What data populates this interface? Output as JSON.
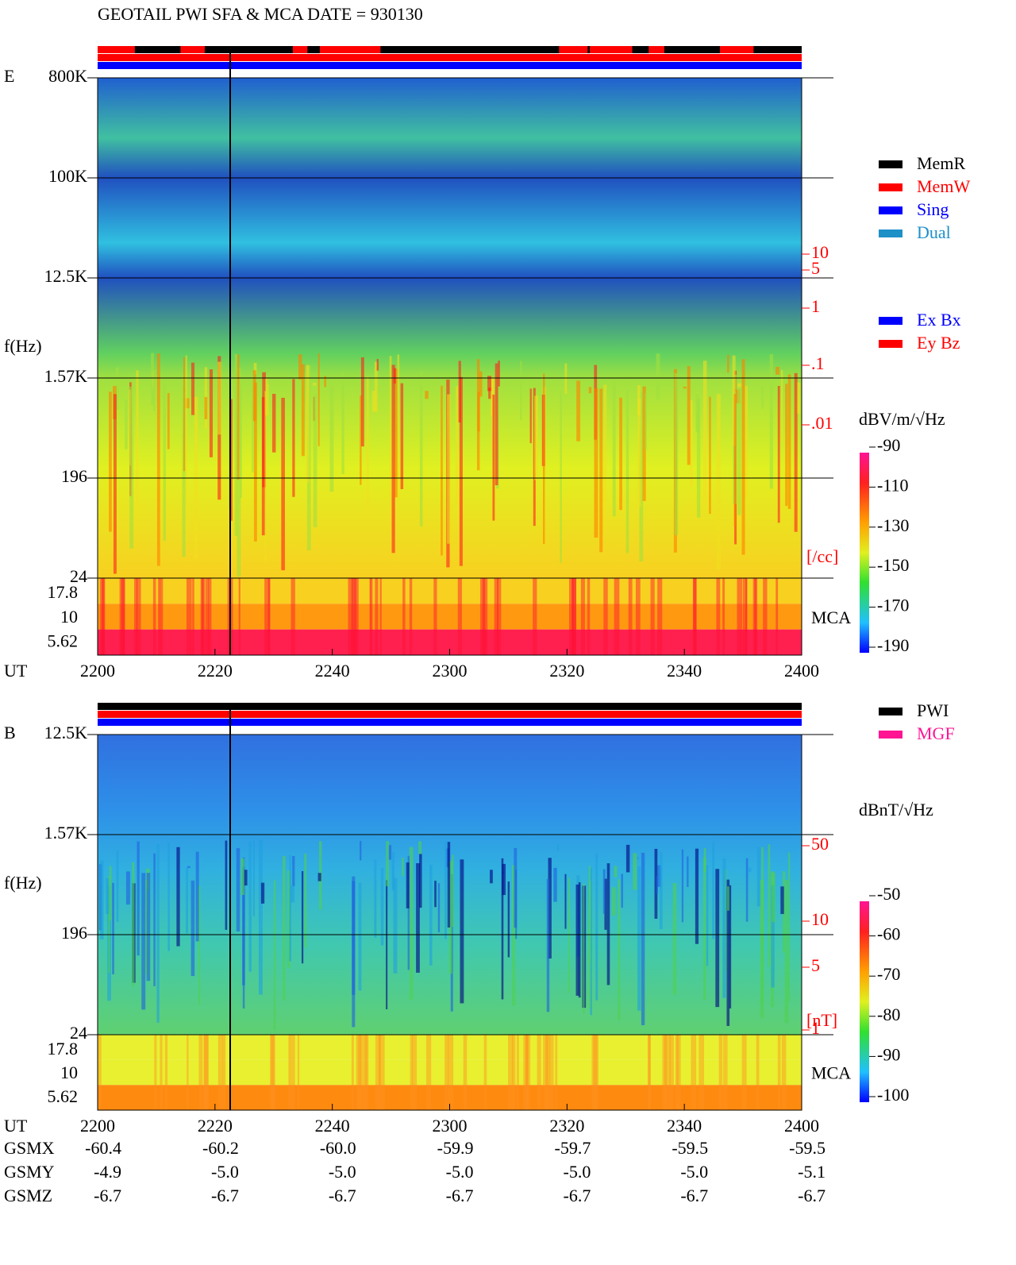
{
  "header": {
    "title": "GEOTAIL  PWI SFA & MCA   DATE = 930130"
  },
  "panels": [
    {
      "label": "E",
      "y_label": "f(Hz)",
      "freq_ticks": [
        "800K",
        "100K",
        "12.5K",
        "1.57K",
        "196",
        "24"
      ],
      "mca_ticks": [
        "17.8",
        "10",
        "5.62"
      ],
      "mca_label": "MCA",
      "side_ticks": [
        "10",
        "5",
        "1",
        ".1",
        ".01"
      ],
      "side_unit": "[/cc]",
      "colorbar_unit": "dBV/m/√Hz",
      "colorbar_ticks": [
        "-90",
        "-110",
        "-130",
        "-150",
        "-170",
        "-190"
      ],
      "legend": [
        {
          "name": "MemR",
          "color": "#000000"
        },
        {
          "name": "MemW",
          "color": "#ff0000"
        },
        {
          "name": "Sing",
          "color": "#0000ff"
        },
        {
          "name": "Dual",
          "color": "#1e90c8"
        }
      ],
      "legend2": [
        {
          "name": "Ex Bx",
          "color": "#0000ff"
        },
        {
          "name": "Ey Bz",
          "color": "#ff0000"
        }
      ]
    },
    {
      "label": "B",
      "y_label": "f(Hz)",
      "freq_ticks": [
        "12.5K",
        "1.57K",
        "196",
        "24"
      ],
      "mca_ticks": [
        "17.8",
        "10",
        "5.62"
      ],
      "mca_label": "MCA",
      "side_ticks": [
        "50",
        "10",
        "5",
        "1"
      ],
      "side_unit": "[nT]",
      "colorbar_unit": "dBnT/√Hz",
      "colorbar_ticks": [
        "-50",
        "-60",
        "-70",
        "-80",
        "-90",
        "-100"
      ],
      "legend": [
        {
          "name": "PWI",
          "color": "#000000"
        },
        {
          "name": "MGF",
          "color": "#ff1493"
        }
      ]
    }
  ],
  "time_axis": {
    "label": "UT",
    "ticks": [
      "2200",
      "2220",
      "2240",
      "2300",
      "2320",
      "2340",
      "2400"
    ]
  },
  "orbit": [
    {
      "label": "GSMX",
      "values": [
        "-60.4",
        "-60.2",
        "-60.0",
        "-59.9",
        "-59.7",
        "-59.5",
        "-59.5"
      ]
    },
    {
      "label": "GSMY",
      "values": [
        "-4.9",
        "-5.0",
        "-5.0",
        "-5.0",
        "-5.0",
        "-5.0",
        "-5.1"
      ]
    },
    {
      "label": "GSMZ",
      "values": [
        "-6.7",
        "-6.7",
        "-6.7",
        "-6.7",
        "-6.7",
        "-6.7",
        "-6.7"
      ]
    }
  ]
}
